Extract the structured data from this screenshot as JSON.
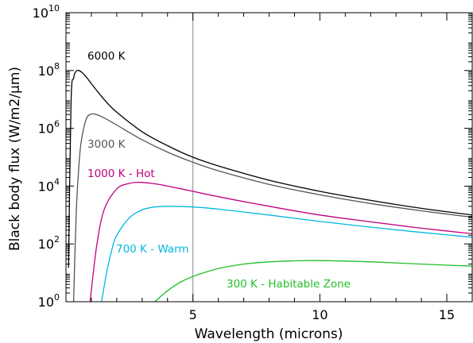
{
  "chart_data": {
    "type": "line",
    "xlabel": "Wavelength (microns)",
    "ylabel": "Black body flux (W/m2/µm)",
    "xlim": [
      0,
      16
    ],
    "ylim": [
      1,
      10000000000
    ],
    "yscale": "log",
    "grid": false,
    "x_ticks": [
      5,
      10,
      15
    ],
    "x_tick_labels": [
      "5",
      "10",
      "15"
    ],
    "y_ticks": [
      1,
      100,
      10000,
      1000000,
      100000000,
      10000000000
    ],
    "y_tick_labels": [
      {
        "base": "10",
        "exp": "0"
      },
      {
        "base": "10",
        "exp": "2"
      },
      {
        "base": "10",
        "exp": "4"
      },
      {
        "base": "10",
        "exp": "6"
      },
      {
        "base": "10",
        "exp": "8"
      },
      {
        "base": "10",
        "exp": "10"
      }
    ],
    "reference_line": {
      "x": 5,
      "color": "#888888"
    },
    "series": [
      {
        "name": "6000 K",
        "color": "#000000",
        "x": [
          0.1,
          0.2,
          0.3,
          0.4,
          0.5,
          0.6,
          0.8,
          1.0,
          1.5,
          2,
          3,
          4,
          5,
          6,
          8,
          10,
          12,
          14,
          16
        ],
        "y": [
          15,
          8400000,
          55000000,
          95000000,
          100000000,
          90000000,
          60000000,
          35000000,
          10000000,
          3600000,
          760000,
          250000,
          100000,
          50000,
          16000,
          6600,
          3200,
          1700,
          1000
        ]
      },
      {
        "name": "3000 K",
        "color": "#555555",
        "x": [
          0.3,
          0.4,
          0.5,
          0.6,
          0.8,
          1.0,
          1.2,
          1.5,
          2,
          3,
          4,
          5,
          6,
          8,
          10,
          12,
          14,
          16
        ],
        "y": [
          1,
          1000,
          40000,
          350000,
          2100000,
          3100000,
          3000000,
          2300000,
          1300000,
          400000,
          150000,
          67000,
          34000,
          11500,
          5000,
          2500,
          1400,
          840
        ]
      },
      {
        "name": "1000 K - Hot",
        "color": "#c0007e",
        "x": [
          0.95,
          1.2,
          1.5,
          2,
          2.5,
          2.9,
          3.5,
          4,
          5,
          6,
          8,
          10,
          12,
          14,
          16
        ],
        "y": [
          1,
          75,
          1500,
          8000,
          12500,
          13500,
          12000,
          10000,
          6600,
          4300,
          2000,
          1000,
          580,
          350,
          225
        ]
      },
      {
        "name": "700 K - Warm",
        "color": "#00b8e0",
        "x": [
          1.4,
          1.6,
          1.8,
          2,
          2.5,
          3,
          3.5,
          4.1,
          5,
          6,
          8,
          10,
          12,
          14,
          16
        ],
        "y": [
          1,
          10,
          60,
          200,
          800,
          1500,
          1900,
          2000,
          1900,
          1600,
          1000,
          600,
          380,
          250,
          170
        ]
      },
      {
        "name": "300 K - Habitable Zone",
        "color": "#22c028",
        "x": [
          3.5,
          4,
          4.5,
          5,
          6,
          7,
          8,
          9,
          9.7,
          11,
          12,
          13,
          14,
          16
        ],
        "y": [
          1,
          2.4,
          4.7,
          7.5,
          14,
          20,
          24,
          26,
          26.5,
          25.5,
          24,
          22,
          20,
          17
        ]
      }
    ]
  }
}
